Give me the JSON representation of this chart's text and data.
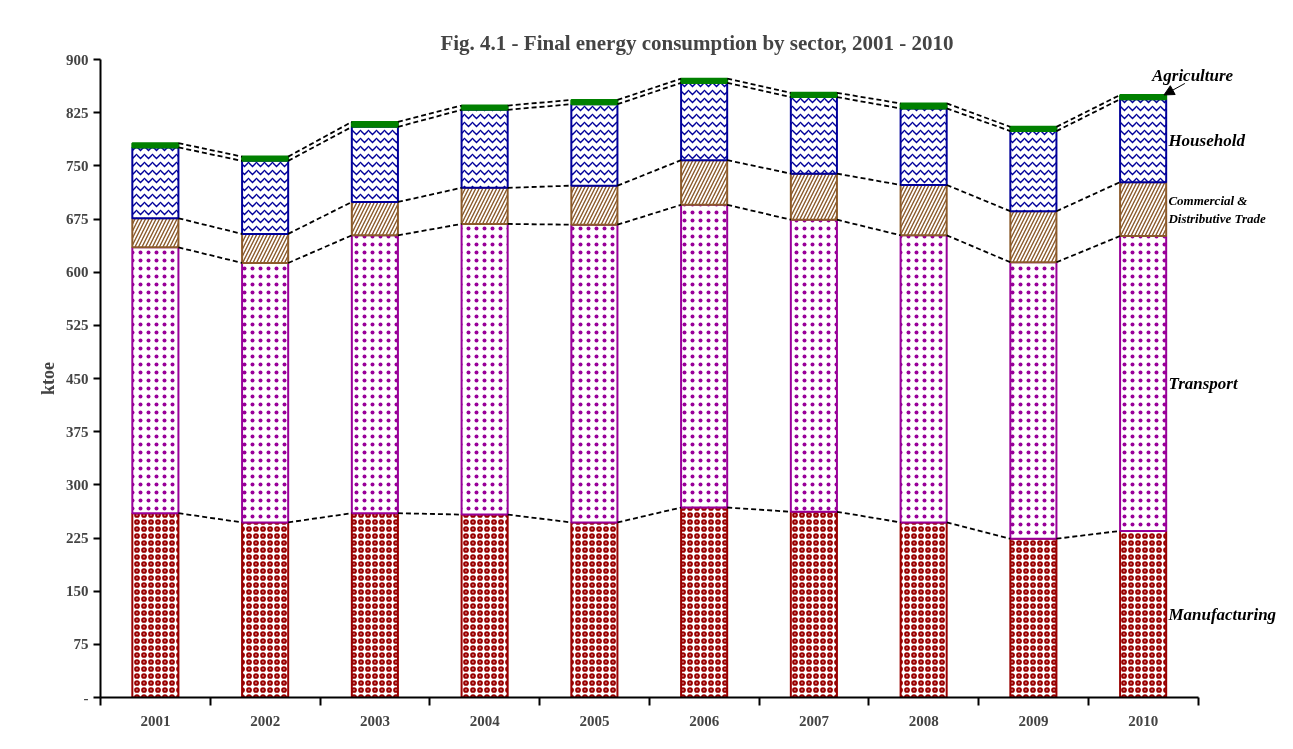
{
  "chart_data": {
    "type": "bar",
    "stacked": true,
    "title": "Fig. 4.1 - Final energy consumption by sector, 2001 - 2010",
    "ylabel": "ktoe",
    "categories": [
      "2001",
      "2002",
      "2003",
      "2004",
      "2005",
      "2006",
      "2007",
      "2008",
      "2009",
      "2010"
    ],
    "series": [
      {
        "name": "Manufacturing",
        "color": "#990000",
        "values": [
          260,
          247,
          260,
          258,
          247,
          268,
          262,
          247,
          224,
          235
        ]
      },
      {
        "name": "Transport",
        "color": "#990099",
        "values": [
          375,
          366,
          392,
          410,
          420,
          427,
          412,
          405,
          390,
          416
        ]
      },
      {
        "name": "Commercial & Distributive Trade",
        "color": "#8b5a2b",
        "values": [
          41,
          41,
          47,
          51,
          55,
          63,
          65,
          71,
          72,
          76
        ]
      },
      {
        "name": "Household",
        "color": "#000099",
        "values": [
          100,
          103,
          106,
          110,
          115,
          109,
          108,
          108,
          113,
          117
        ]
      },
      {
        "name": "Agriculture",
        "color": "#008000",
        "values": [
          6,
          6,
          7,
          6,
          6,
          6,
          6,
          7,
          6,
          6
        ]
      }
    ],
    "ylim": [
      0,
      900
    ],
    "yticks": [
      {
        "value": 0,
        "label": "-"
      },
      75,
      150,
      225,
      300,
      375,
      450,
      525,
      600,
      675,
      750,
      825,
      900
    ]
  }
}
